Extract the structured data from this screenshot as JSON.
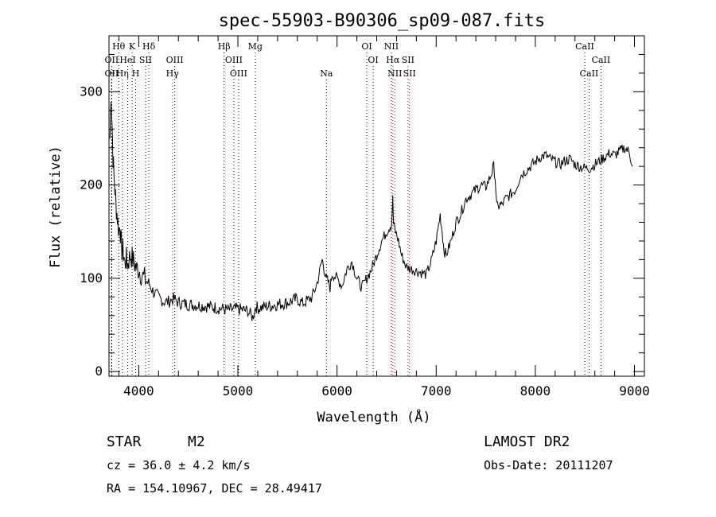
{
  "chart_data": {
    "type": "line",
    "title": "spec-55903-B90306_sp09-087.fits",
    "xlabel": "Wavelength (Å)",
    "ylabel": "Flux (relative)",
    "xlim": [
      3700,
      9100
    ],
    "ylim": [
      -5,
      360
    ],
    "x_ticks": [
      "4000",
      "5000",
      "6000",
      "7000",
      "8000",
      "9000"
    ],
    "y_ticks": [
      "0",
      "100",
      "200",
      "300"
    ],
    "grid": false,
    "series": [
      {
        "x": [
          3710,
          3720,
          3730,
          3740,
          3750,
          3760,
          3770,
          3780,
          3790,
          3800,
          3810,
          3820,
          3830,
          3840,
          3850,
          3860,
          3870,
          3880,
          3890,
          3900,
          3920,
          3940,
          3960,
          3980,
          4000,
          4050,
          4100,
          4150,
          4200,
          4250,
          4300,
          4350,
          4400,
          4500,
          4600,
          4700,
          4800,
          4900,
          5000,
          5100,
          5150,
          5180,
          5200,
          5300,
          5400,
          5500,
          5600,
          5650,
          5700,
          5750,
          5800,
          5850,
          5870,
          5890,
          5910,
          5930,
          5950,
          6000,
          6050,
          6100,
          6150,
          6200,
          6250,
          6300,
          6350,
          6400,
          6450,
          6500,
          6530,
          6550,
          6562,
          6570,
          6590,
          6620,
          6650,
          6700,
          6750,
          6800,
          6850,
          6900,
          6950,
          7000,
          7040,
          7060,
          7080,
          7100,
          7150,
          7200,
          7250,
          7300,
          7350,
          7400,
          7450,
          7500,
          7550,
          7580,
          7595,
          7610,
          7625,
          7640,
          7660,
          7700,
          7750,
          7800,
          7850,
          7900,
          7950,
          8000,
          8050,
          8100,
          8150,
          8200,
          8250,
          8300,
          8350,
          8400,
          8450,
          8500,
          8550,
          8600,
          8650,
          8700,
          8750,
          8800,
          8850,
          8900,
          8950,
          8980
        ],
        "y": [
          250,
          300,
          270,
          230,
          210,
          195,
          180,
          170,
          160,
          150,
          160,
          140,
          130,
          130,
          125,
          115,
          120,
          120,
          115,
          120,
          125,
          120,
          115,
          110,
          110,
          100,
          95,
          85,
          80,
          75,
          75,
          78,
          74,
          72,
          71,
          70,
          68,
          66,
          67,
          65,
          58,
          70,
          68,
          70,
          72,
          74,
          78,
          73,
          76,
          80,
          95,
          120,
          110,
          100,
          96,
          90,
          105,
          100,
          92,
          110,
          118,
          100,
          90,
          100,
          110,
          125,
          140,
          150,
          155,
          158,
          185,
          158,
          150,
          140,
          125,
          112,
          110,
          108,
          106,
          104,
          118,
          140,
          168,
          150,
          130,
          125,
          140,
          160,
          170,
          185,
          190,
          195,
          200,
          198,
          210,
          220,
          208,
          178,
          175,
          180,
          178,
          185,
          190,
          195,
          210,
          215,
          220,
          225,
          230,
          232,
          228,
          225,
          222,
          226,
          228,
          222,
          220,
          218,
          218,
          222,
          226,
          230,
          234,
          232,
          236,
          240,
          235,
          220
        ]
      }
    ],
    "line_markers": [
      {
        "label": "Hθ",
        "x": 3798,
        "row": 0,
        "color": "black"
      },
      {
        "label": "K",
        "x": 3934,
        "row": 0,
        "color": "black"
      },
      {
        "label": "Hδ",
        "x": 4102,
        "row": 0,
        "color": "black"
      },
      {
        "label": "Hβ",
        "x": 4861,
        "row": 0,
        "color": "black"
      },
      {
        "label": "Mg",
        "x": 5175,
        "row": 0,
        "color": "black"
      },
      {
        "label": "OI",
        "x": 6300,
        "row": 0,
        "color": "black"
      },
      {
        "label": "NII",
        "x": 6548,
        "row": 0,
        "color": "black"
      },
      {
        "label": "CaII",
        "x": 8498,
        "row": 0,
        "color": "black"
      },
      {
        "label": "OII",
        "x": 3727,
        "row": 1,
        "color": "black"
      },
      {
        "label": "HeI",
        "x": 3889,
        "row": 1,
        "color": "black"
      },
      {
        "label": "SII",
        "x": 4069,
        "row": 1,
        "color": "black"
      },
      {
        "label": "OIII",
        "x": 4363,
        "row": 1,
        "color": "black"
      },
      {
        "label": "OIII",
        "x": 4959,
        "row": 1,
        "color": "black"
      },
      {
        "label": "OI",
        "x": 6364,
        "row": 1,
        "color": "black"
      },
      {
        "label": "Hα",
        "x": 6563,
        "row": 1,
        "color": "red"
      },
      {
        "label": "SII",
        "x": 6716,
        "row": 1,
        "color": "red"
      },
      {
        "label": "CaII",
        "x": 8662,
        "row": 1,
        "color": "black"
      },
      {
        "label": "OII",
        "x": 3727,
        "row": 2,
        "color": "black"
      },
      {
        "label": "Hη",
        "x": 3835,
        "row": 2,
        "color": "black"
      },
      {
        "label": "H",
        "x": 3969,
        "row": 2,
        "color": "black"
      },
      {
        "label": "Hγ",
        "x": 4340,
        "row": 2,
        "color": "red"
      },
      {
        "label": "OIII",
        "x": 5007,
        "row": 2,
        "color": "black"
      },
      {
        "label": "Na",
        "x": 5893,
        "row": 2,
        "color": "black"
      },
      {
        "label": "NII",
        "x": 6583,
        "row": 2,
        "color": "red"
      },
      {
        "label": "SII",
        "x": 6731,
        "row": 2,
        "color": "red"
      },
      {
        "label": "CaII",
        "x": 8542,
        "row": 2,
        "color": "black"
      }
    ],
    "marker_colors": {
      "black": "#000000",
      "red": "#cc0000"
    }
  },
  "info": {
    "object_class": "STAR",
    "subclass": "M2",
    "survey": "LAMOST DR2",
    "redshift_text": "cz = 36.0 ± 4.2 km/s",
    "obs_date_text": "Obs-Date: 20111207",
    "coords_text": "RA = 154.10967, DEC =  28.49417"
  }
}
